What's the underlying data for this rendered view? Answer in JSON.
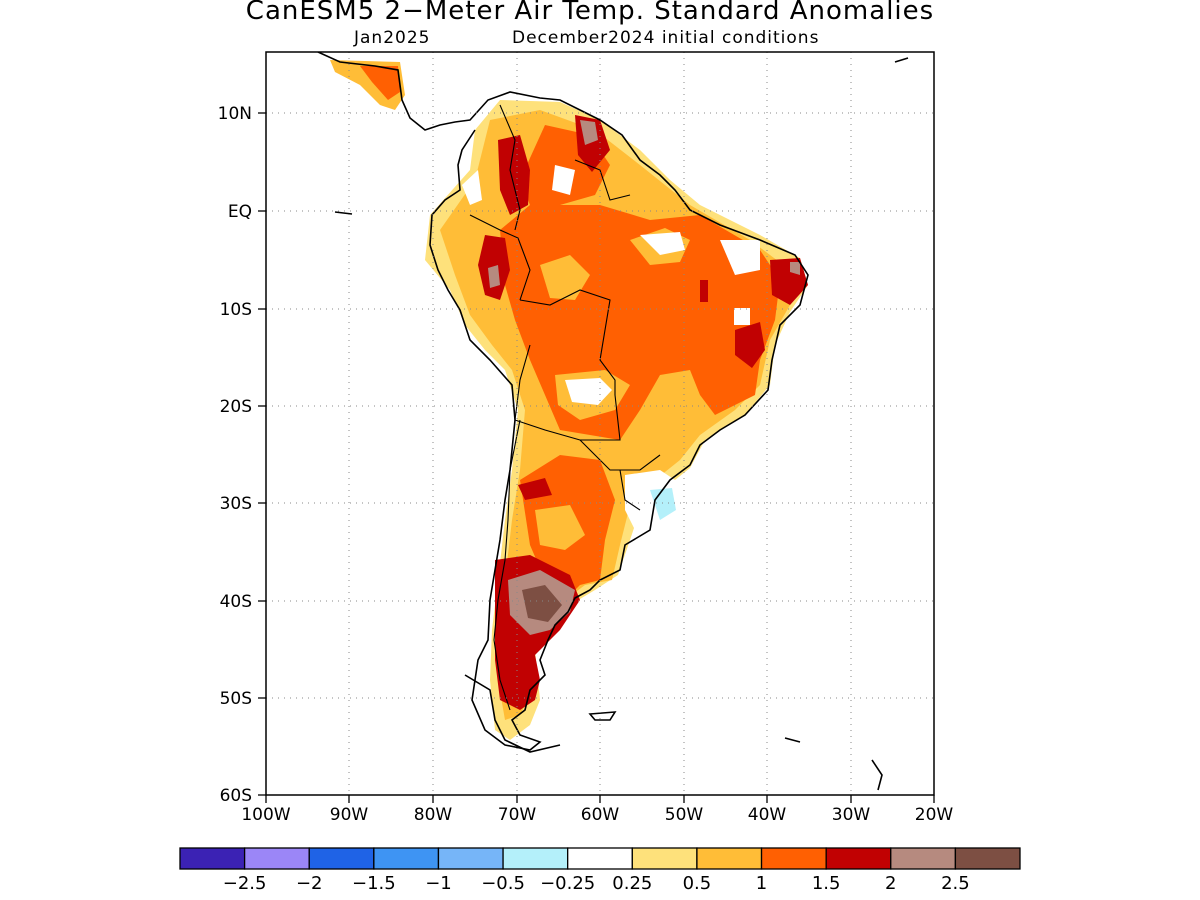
{
  "title": "CanESM5 2−Meter Air Temp. Standard Anomalies",
  "subtitle_left": "Jan2025",
  "subtitle_right": "December2024 initial conditions",
  "lat_labels": [
    "10N",
    "EQ",
    "10S",
    "20S",
    "30S",
    "40S",
    "50S",
    "60S"
  ],
  "lon_labels": [
    "100W",
    "90W",
    "80W",
    "70W",
    "60W",
    "50W",
    "40W",
    "30W",
    "20W"
  ],
  "colorbar": {
    "colors": [
      "#3b22b4",
      "#9b86f7",
      "#1f63e6",
      "#3e94f3",
      "#76b5f8",
      "#b4f0fa",
      "#ffffff",
      "#fee17b",
      "#ffbd37",
      "#ff6002",
      "#c10102",
      "#b68a7f",
      "#7d4f43"
    ],
    "labels": [
      "−2.5",
      "−2",
      "−1.5",
      "−1",
      "−0.5",
      "−0.25",
      "0.25",
      "0.5",
      "1",
      "1.5",
      "2",
      "2.5"
    ]
  },
  "map_region": {
    "lon_range": [
      -100,
      -20
    ],
    "lat_range": [
      -60,
      16
    ],
    "projection": "lat-lon"
  }
}
